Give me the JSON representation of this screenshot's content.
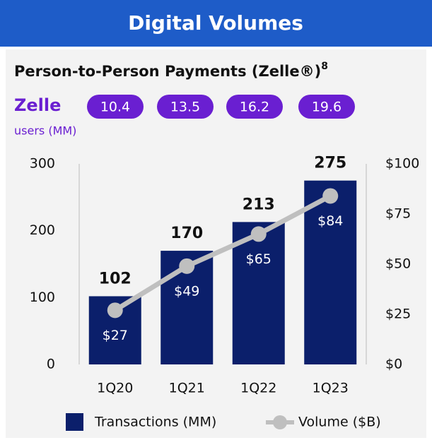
{
  "chart_data": {
    "type": "bar_line",
    "title": "Digital Volumes",
    "subtitle": "Person-to-Person Payments (Zelle®)",
    "subtitle_note": "8",
    "zelle_users": {
      "logo": "Zelle",
      "label": "users (MM)",
      "values": [
        10.4,
        13.5,
        16.2,
        19.6
      ],
      "color": "#6a1fd1"
    },
    "categories": [
      "1Q20",
      "1Q21",
      "1Q22",
      "1Q23"
    ],
    "series": [
      {
        "name": "Transactions (MM)",
        "color": "#0b1f6b",
        "values": [
          102,
          170,
          213,
          275
        ]
      },
      {
        "name": "Volume ($B)",
        "color": "#bfbfbf",
        "axis": "y2",
        "values": [
          27,
          49,
          65,
          84
        ],
        "value_labels": [
          "$27",
          "$49",
          "$65",
          "$84"
        ]
      }
    ],
    "ylim": [
      0,
      300
    ],
    "yticks": [
      0,
      100,
      200,
      300
    ],
    "y2lim": [
      0,
      100
    ],
    "y2ticks": [
      {
        "value": 0,
        "label": "$0"
      },
      {
        "value": 25,
        "label": "$25"
      },
      {
        "value": 50,
        "label": "$50"
      },
      {
        "value": 75,
        "label": "$75"
      },
      {
        "value": 100,
        "label": "$100"
      }
    ],
    "grid": false,
    "legend": "bottom"
  }
}
